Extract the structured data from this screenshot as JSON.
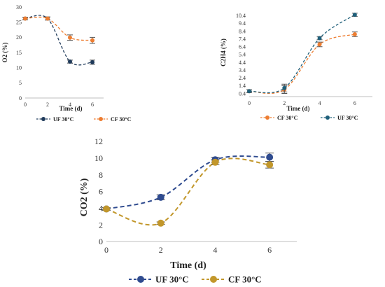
{
  "chart_data": [
    {
      "type": "line",
      "title": "",
      "xlabel": "Time (d)",
      "ylabel": "O2 (%)",
      "x": [
        0,
        2,
        4,
        6
      ],
      "xlim": [
        0,
        7
      ],
      "ylim": [
        0,
        30
      ],
      "xticks": [
        "0",
        "2",
        "4",
        "6"
      ],
      "yticks": [
        "0",
        "5",
        "10",
        "15",
        "20",
        "25",
        "30"
      ],
      "legend_position": "bottom",
      "series": [
        {
          "name": "UF 30°C",
          "values": [
            26.2,
            26.2,
            12.0,
            11.8
          ],
          "errors": [
            0.4,
            0.5,
            0.5,
            0.7
          ],
          "color": "#1f3a5a"
        },
        {
          "name": "CF 30°C",
          "values": [
            26.2,
            26.2,
            19.9,
            19.0
          ],
          "errors": [
            0.4,
            0.5,
            0.9,
            1.0
          ],
          "color": "#ed7d31"
        }
      ]
    },
    {
      "type": "line",
      "title": "",
      "xlabel": "Time (d)",
      "ylabel": "C2H4 (%)",
      "x": [
        0,
        2,
        4,
        6
      ],
      "xlim": [
        0,
        7
      ],
      "ylim": [
        0,
        11.5
      ],
      "xticks": [
        "0",
        "2",
        "4",
        "6"
      ],
      "yticks": [
        "0.4",
        "1.4",
        "2.4",
        "3.4",
        "4.4",
        "5.4",
        "6.4",
        "7.4",
        "8.4",
        "9.4",
        "10.4"
      ],
      "legend_position": "bottom",
      "series": [
        {
          "name": "CF 30°C",
          "values": [
            0.7,
            0.9,
            6.7,
            8.0
          ],
          "errors": [
            0.2,
            0.5,
            0.3,
            0.3
          ],
          "color": "#ed7d31"
        },
        {
          "name": "UF 30°C",
          "values": [
            0.7,
            1.1,
            7.5,
            10.5
          ],
          "errors": [
            0.2,
            0.5,
            0.2,
            0.2
          ],
          "color": "#1f5f7a"
        }
      ]
    },
    {
      "type": "line",
      "title": "",
      "xlabel": "Time (d)",
      "ylabel": "CO2 (%)",
      "x": [
        0,
        2,
        4,
        6
      ],
      "xlim": [
        0,
        7
      ],
      "ylim": [
        0,
        12
      ],
      "xticks": [
        "0",
        "2",
        "4",
        "6"
      ],
      "yticks": [
        "0",
        "2",
        "4",
        "6",
        "8",
        "10",
        "12"
      ],
      "legend_position": "bottom",
      "series": [
        {
          "name": "UF 30°C",
          "values": [
            3.9,
            5.3,
            9.8,
            10.1
          ],
          "errors": [
            0.15,
            0.3,
            0.3,
            0.5
          ],
          "color": "#2f4b8f"
        },
        {
          "name": "CF 30°C",
          "values": [
            3.9,
            2.2,
            9.5,
            9.2
          ],
          "errors": [
            0.15,
            0.15,
            0.3,
            0.4
          ],
          "color": "#c2972b"
        }
      ]
    }
  ]
}
